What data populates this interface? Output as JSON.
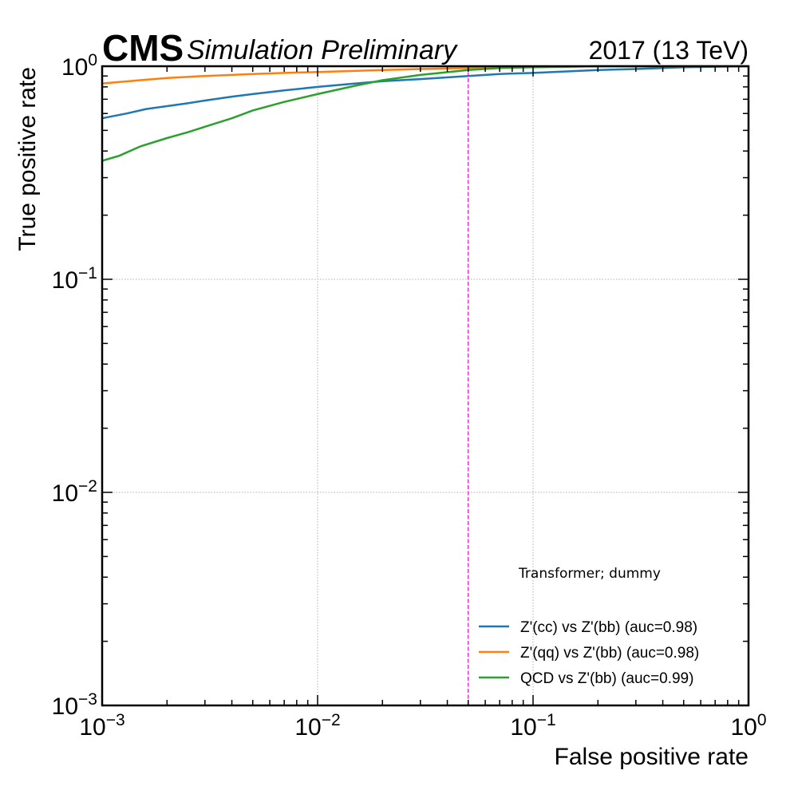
{
  "header": {
    "experiment": "CMS",
    "extra": "Simulation Preliminary",
    "lumi": "2017 (13 TeV)"
  },
  "chart_data": {
    "type": "line",
    "xlabel": "False positive rate",
    "ylabel": "True positive rate",
    "xscale": "log",
    "yscale": "log",
    "xlim": [
      0.001,
      1
    ],
    "ylim": [
      0.001,
      1
    ],
    "grid": true,
    "x_ticks": [
      {
        "base": "10",
        "exp": "−3",
        "value": 0.001
      },
      {
        "base": "10",
        "exp": "−2",
        "value": 0.01
      },
      {
        "base": "10",
        "exp": "−1",
        "value": 0.1
      },
      {
        "base": "10",
        "exp": "0",
        "value": 1
      }
    ],
    "y_ticks": [
      {
        "base": "10",
        "exp": "−3",
        "value": 0.001
      },
      {
        "base": "10",
        "exp": "−2",
        "value": 0.01
      },
      {
        "base": "10",
        "exp": "−1",
        "value": 0.1
      },
      {
        "base": "10",
        "exp": "0",
        "value": 1
      }
    ],
    "vline": {
      "x": 0.05,
      "color": "#e020c0",
      "style": "dashed"
    },
    "legend": {
      "title": "Transformer; dummy",
      "position": "lower-right"
    },
    "series": [
      {
        "name": "Z'(cc) vs Z'(bb) (auc=0.98)",
        "color": "#1f77b4",
        "x": [
          0.001,
          0.0013,
          0.0016,
          0.002,
          0.0025,
          0.003,
          0.004,
          0.005,
          0.007,
          0.01,
          0.015,
          0.02,
          0.03,
          0.05,
          0.07,
          0.1,
          0.2,
          0.3,
          0.5,
          1.0
        ],
        "y": [
          0.57,
          0.6,
          0.63,
          0.65,
          0.67,
          0.69,
          0.72,
          0.74,
          0.77,
          0.8,
          0.83,
          0.85,
          0.87,
          0.9,
          0.92,
          0.93,
          0.96,
          0.97,
          0.99,
          1.0
        ]
      },
      {
        "name": "Z'(qq) vs Z'(bb) (auc=0.98)",
        "color": "#ff7f0e",
        "x": [
          0.001,
          0.0015,
          0.002,
          0.003,
          0.005,
          0.007,
          0.01,
          0.02,
          0.03,
          0.05,
          0.07,
          0.1,
          0.2,
          0.5,
          1.0
        ],
        "y": [
          0.83,
          0.86,
          0.88,
          0.9,
          0.92,
          0.93,
          0.94,
          0.96,
          0.97,
          0.98,
          0.99,
          0.99,
          1.0,
          1.0,
          1.0
        ]
      },
      {
        "name": "QCD vs Z'(bb) (auc=0.99)",
        "color": "#2ca02c",
        "x": [
          0.001,
          0.0012,
          0.0015,
          0.002,
          0.0025,
          0.003,
          0.004,
          0.005,
          0.007,
          0.01,
          0.015,
          0.02,
          0.03,
          0.05,
          0.07,
          0.1,
          0.2,
          0.5,
          1.0
        ],
        "y": [
          0.36,
          0.38,
          0.42,
          0.46,
          0.49,
          0.52,
          0.57,
          0.62,
          0.68,
          0.74,
          0.81,
          0.86,
          0.91,
          0.96,
          0.98,
          0.99,
          1.0,
          1.0,
          1.0
        ]
      }
    ]
  }
}
